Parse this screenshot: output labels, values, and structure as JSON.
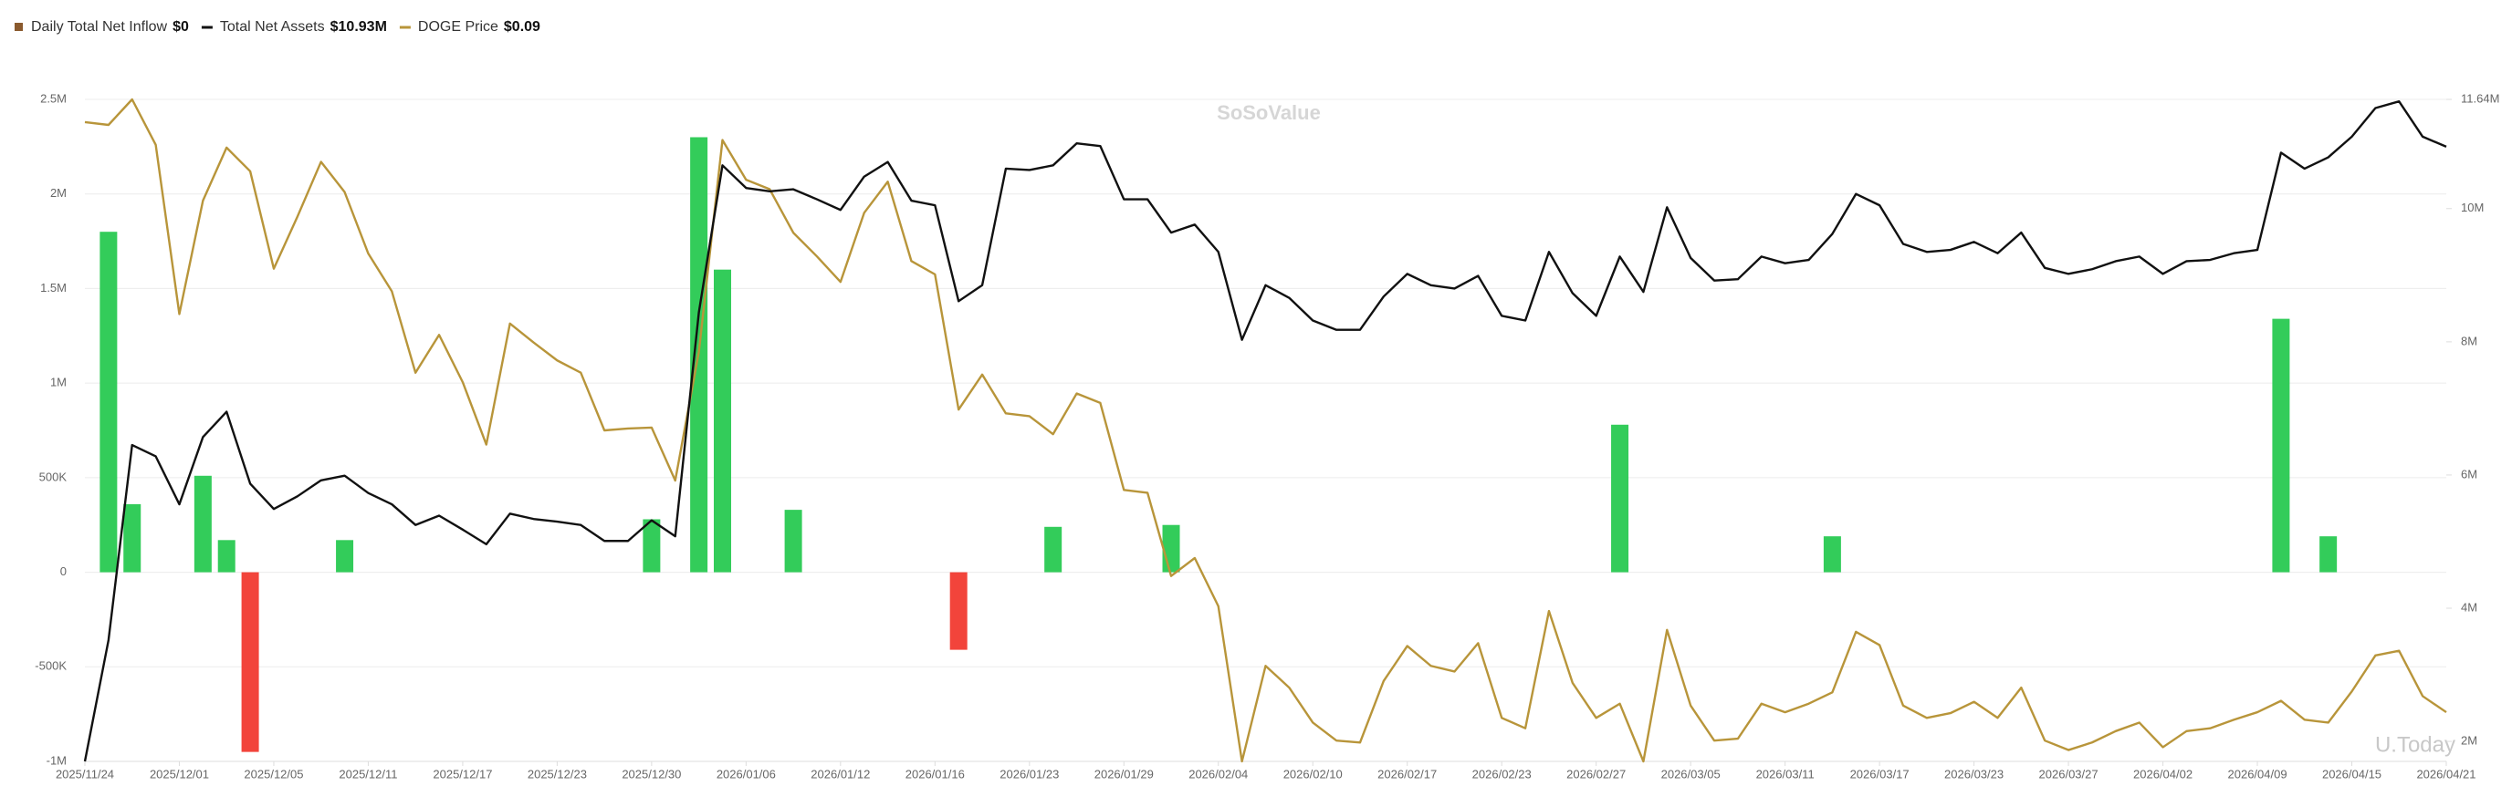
{
  "chart_data": {
    "type": "combo",
    "watermark": "SoSoValue",
    "corner_watermark": "U.Today",
    "categories": [
      "2025/11/24",
      null,
      null,
      null,
      "2025/12/01",
      null,
      null,
      null,
      "2025/12/05",
      null,
      null,
      null,
      "2025/12/11",
      null,
      null,
      null,
      "2025/12/17",
      null,
      null,
      null,
      "2025/12/23",
      null,
      null,
      null,
      "2025/12/30",
      null,
      null,
      null,
      "2026/01/06",
      null,
      null,
      null,
      "2026/01/12",
      null,
      null,
      null,
      "2026/01/16",
      null,
      null,
      null,
      "2026/01/23",
      null,
      null,
      null,
      "2026/01/29",
      null,
      null,
      null,
      "2026/02/04",
      null,
      null,
      null,
      "2026/02/10",
      null,
      null,
      null,
      "2026/02/17",
      null,
      null,
      null,
      "2026/02/23",
      null,
      null,
      null,
      "2026/02/27",
      null,
      null,
      null,
      "2026/03/05",
      null,
      null,
      null,
      "2026/03/11",
      null,
      null,
      null,
      "2026/03/17",
      null,
      null,
      null,
      "2026/03/23",
      null,
      null,
      null,
      "2026/03/27",
      null,
      null,
      null,
      "2026/04/02",
      null,
      null,
      null,
      "2026/04/09",
      null,
      null,
      null,
      "2026/04/15",
      null,
      null,
      null,
      "2026/04/21"
    ],
    "series": [
      {
        "name": "Daily Total Net Inflow",
        "latest_label": "$0",
        "type": "bar",
        "axis": "y",
        "color": "#33cc5a",
        "negative_color": "#f2443b",
        "legend_color": "#8a5a2e",
        "values": [
          0,
          1800000,
          360000,
          0,
          0,
          510000,
          170000,
          -950000,
          0,
          0,
          0,
          170000,
          0,
          0,
          0,
          0,
          0,
          0,
          0,
          0,
          0,
          0,
          0,
          0,
          280000,
          0,
          2300000,
          1600000,
          0,
          0,
          330000,
          0,
          0,
          0,
          0,
          0,
          0,
          -410000,
          0,
          0,
          0,
          240000,
          0,
          0,
          0,
          0,
          250000,
          0,
          0,
          0,
          0,
          0,
          0,
          0,
          0,
          0,
          0,
          0,
          0,
          0,
          0,
          0,
          0,
          0,
          0,
          780000,
          0,
          0,
          0,
          0,
          0,
          0,
          0,
          0,
          190000,
          0,
          0,
          0,
          0,
          0,
          0,
          0,
          0,
          0,
          0,
          0,
          0,
          0,
          0,
          0,
          0,
          0,
          0,
          1340000,
          0,
          190000,
          0,
          0,
          0,
          0,
          0
        ]
      },
      {
        "name": "Total Net Assets",
        "latest_label": "$10.93M",
        "type": "line",
        "axis": "y2",
        "color": "#111111",
        "values": [
          1700000,
          3520000,
          6450000,
          6280000,
          5560000,
          6570000,
          6950000,
          5870000,
          5490000,
          5680000,
          5920000,
          5990000,
          5730000,
          5560000,
          5250000,
          5390000,
          5180000,
          4960000,
          5420000,
          5340000,
          5300000,
          5250000,
          5010000,
          5010000,
          5320000,
          5080000,
          8440000,
          10650000,
          10310000,
          10260000,
          10290000,
          10140000,
          9980000,
          10480000,
          10700000,
          10120000,
          10050000,
          8610000,
          8850000,
          10600000,
          10580000,
          10650000,
          10980000,
          10940000,
          10140000,
          10140000,
          9640000,
          9760000,
          9350000,
          8030000,
          8850000,
          8660000,
          8320000,
          8180000,
          8180000,
          8680000,
          9020000,
          8850000,
          8800000,
          8990000,
          8390000,
          8320000,
          9350000,
          8730000,
          8390000,
          9280000,
          8750000,
          10020000,
          9260000,
          8920000,
          8940000,
          9280000,
          9180000,
          9230000,
          9620000,
          10220000,
          10050000,
          9470000,
          9350000,
          9380000,
          9500000,
          9330000,
          9640000,
          9110000,
          9020000,
          9090000,
          9210000,
          9280000,
          9020000,
          9210000,
          9230000,
          9330000,
          9380000,
          10840000,
          10600000,
          10770000,
          11080000,
          11510000,
          11610000,
          11080000,
          10930000
        ]
      },
      {
        "name": "DOGE Price",
        "latest_label": "$0.09",
        "type": "line",
        "axis": "y3",
        "color": "#b8953a",
        "values": [
          0.1526,
          0.1523,
          0.155,
          0.1502,
          0.1323,
          0.1443,
          0.1499,
          0.1474,
          0.1371,
          0.1426,
          0.1484,
          0.1452,
          0.1387,
          0.1347,
          0.1261,
          0.1301,
          0.1251,
          0.1185,
          0.1313,
          0.1293,
          0.1274,
          0.1261,
          0.12,
          0.1202,
          0.1203,
          0.1147,
          0.1283,
          0.1507,
          0.1465,
          0.1455,
          0.1409,
          0.1384,
          0.1357,
          0.143,
          0.1463,
          0.1379,
          0.1365,
          0.1222,
          0.1259,
          0.1218,
          0.1215,
          0.1196,
          0.1239,
          0.1229,
          0.1137,
          0.1134,
          0.1046,
          0.1065,
          0.1014,
          0.085,
          0.0951,
          0.0928,
          0.0891,
          0.0872,
          0.087,
          0.0935,
          0.0972,
          0.0951,
          0.0945,
          0.0975,
          0.0896,
          0.0885,
          0.1009,
          0.0933,
          0.0896,
          0.0911,
          0.085,
          0.0989,
          0.0909,
          0.0872,
          0.0874,
          0.0911,
          0.0902,
          0.0911,
          0.0923,
          0.0987,
          0.0973,
          0.0909,
          0.0896,
          0.0901,
          0.0913,
          0.0896,
          0.0928,
          0.0872,
          0.0862,
          0.087,
          0.0882,
          0.0891,
          0.0865,
          0.0882,
          0.0885,
          0.0894,
          0.0902,
          0.0914,
          0.0894,
          0.0891,
          0.0924,
          0.0962,
          0.0967,
          0.0919,
          0.0902
        ]
      }
    ],
    "ylim": [
      -1000000,
      2500000
    ],
    "yticks": [
      {
        "value": -1000000,
        "label": "-1M"
      },
      {
        "value": -500000,
        "label": "-500K"
      },
      0,
      {
        "value": 500000,
        "label": "500K"
      },
      {
        "value": 1000000,
        "label": "1M"
      },
      {
        "value": 1500000,
        "label": "1.5M"
      },
      {
        "value": 2000000,
        "label": "2M"
      },
      {
        "value": 2500000,
        "label": "2.5M"
      }
    ],
    "y2lim": [
      1700000,
      11640000
    ],
    "y2ticks": [
      {
        "value": 2000000,
        "label": "2M"
      },
      {
        "value": 4000000,
        "label": "4M"
      },
      {
        "value": 6000000,
        "label": "6M"
      },
      {
        "value": 8000000,
        "label": "8M"
      },
      {
        "value": 10000000,
        "label": "10M"
      },
      {
        "value": 11640000,
        "label": "11.64M"
      }
    ],
    "grid": true
  }
}
